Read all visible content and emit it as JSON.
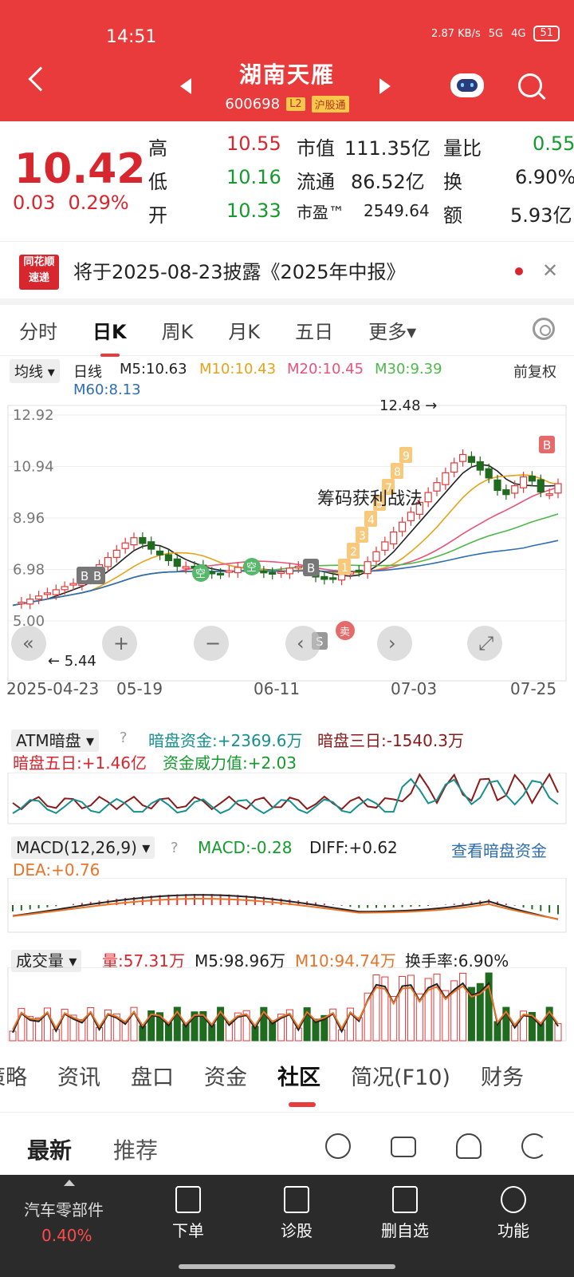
{
  "status": {
    "time": "14:51",
    "net_speed": "2.87 KB/s",
    "net_a": "5G",
    "net_b": "4G",
    "battery": "51"
  },
  "header": {
    "name": "湖南天雁",
    "code": "600698",
    "tag_l2": "L2",
    "tag_hgt": "沪股通"
  },
  "quote": {
    "price": "10.42",
    "change": "0.03",
    "change_pct": "0.29%",
    "high_label": "高",
    "high": "10.55",
    "low_label": "低",
    "low": "10.16",
    "open_label": "开",
    "open": "10.33",
    "mktcap_label": "市值",
    "mktcap": "111.35亿",
    "float_label": "流通",
    "float": "86.52亿",
    "pe_label": "市盈™",
    "pe": "2549.64",
    "vr_label": "量比",
    "vr": "0.55",
    "turnover_label": "换",
    "turnover": "6.90%",
    "amount_label": "额",
    "amount": "5.93亿"
  },
  "notice": {
    "logo_line1": "同花顺",
    "logo_line2": "速递",
    "text": "将于2025-08-23披露《2025年中报》"
  },
  "tabs": [
    "分时",
    "日K",
    "周K",
    "月K",
    "五日",
    "更多▾"
  ],
  "kline": {
    "ma_btn": "均线 ▾",
    "period": "日线",
    "m5": "M5:10.63",
    "m10": "M10:10.43",
    "m20": "M20:10.45",
    "m30": "M30:9.39",
    "m60": "M60:8.13",
    "adjust": "前复权",
    "y_labels": [
      "12.92",
      "10.94",
      "8.96",
      "6.98",
      "5.00"
    ],
    "x_labels": [
      "2025-04-23",
      "05-19",
      "06-11",
      "07-03",
      "07-25"
    ],
    "max_label": "12.48",
    "min_label": "5.44",
    "annotation": "筹码获利战法",
    "nums": [
      "1",
      "2",
      "3",
      "4",
      "5",
      "7",
      "8",
      "9"
    ],
    "b_label": "B",
    "s_label": "S",
    "kong_label": "空",
    "mai_label": "卖",
    "colors": {
      "up": "#e23a3a",
      "down": "#1f6b1f",
      "m5": "#222222",
      "m10": "#e6a21a",
      "m20": "#e8537a",
      "m30": "#4fb84a",
      "m60": "#2e6db1"
    }
  },
  "atm": {
    "title": "ATM暗盘 ▾",
    "help": "?",
    "dark_funds": "暗盘资金:+2369.6万",
    "dark3": "暗盘三日:-1540.3万",
    "dark5": "暗盘五日:+1.46亿",
    "power": "资金威力值:+2.03"
  },
  "macd": {
    "title": "MACD(12,26,9) ▾",
    "help": "?",
    "macd": "MACD:-0.28",
    "diff": "DIFF:+0.62",
    "dea": "DEA:+0.76",
    "link": "查看暗盘资金"
  },
  "volume": {
    "title": "成交量 ▾",
    "vol": "量:57.31万",
    "m5": "M5:98.96万",
    "m10": "M10:94.74万",
    "turnover": "换手率:6.90%"
  },
  "subtabs": [
    "策略",
    "资讯",
    "盘口",
    "资金",
    "社区",
    "简况(F10)",
    "财务"
  ],
  "feed": {
    "latest": "最新",
    "recommend": "推荐"
  },
  "bottom": {
    "sector": "汽车零部件",
    "sector_pct": "0.40%",
    "order": "下单",
    "diagnose": "诊股",
    "remove": "删自选",
    "func": "功能"
  }
}
